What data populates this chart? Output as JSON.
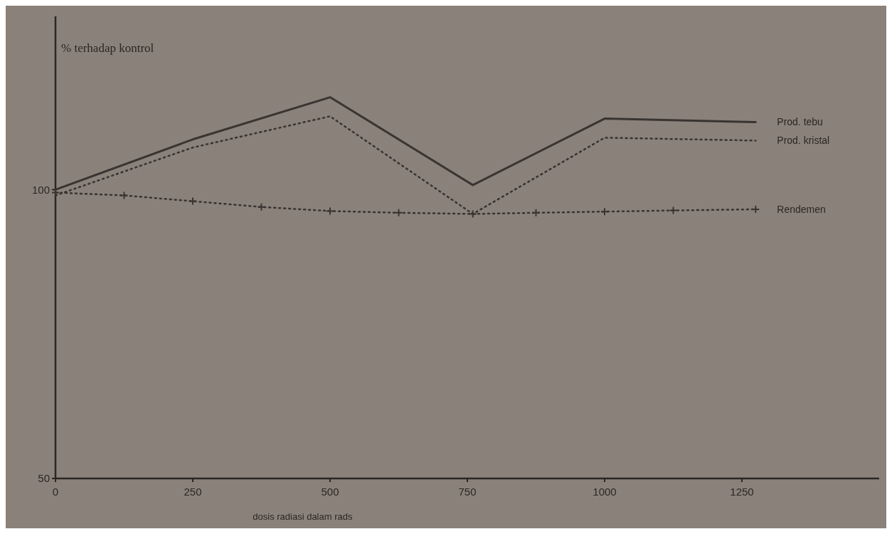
{
  "chart_data": {
    "type": "line",
    "ylabel": "% terhadap kontrol",
    "xlabel": "dosis radiasi dalam rads",
    "xlim": [
      0,
      1500
    ],
    "xticks": [
      0,
      250,
      500,
      750,
      1000,
      1250
    ],
    "ylim": [
      50,
      130
    ],
    "yticks": [
      50,
      100
    ],
    "legend": false,
    "grid": false,
    "series": [
      {
        "name": "Prod. tebu",
        "color": "#3a3431",
        "line_style": "solid",
        "marker": "none",
        "x": [
          0,
          250,
          500,
          760,
          1000,
          1275
        ],
        "values": [
          100,
          108.7,
          116,
          100.8,
          112.3,
          111.7
        ]
      },
      {
        "name": "Prod. kristal",
        "color": "#3a3431",
        "line_style": "dotted",
        "marker": "none",
        "x": [
          0,
          250,
          500,
          760,
          1000,
          1275
        ],
        "values": [
          99,
          107.3,
          112.7,
          95.8,
          109,
          108.5
        ]
      },
      {
        "name": "Rendemen",
        "color": "#3a3431",
        "line_style": "dotted",
        "marker": "cross",
        "x": [
          0,
          125,
          250,
          375,
          500,
          625,
          760,
          875,
          1000,
          1125,
          1275
        ],
        "values": [
          99.5,
          99,
          98,
          97,
          96.3,
          96,
          95.8,
          96,
          96.2,
          96.4,
          96.6
        ]
      }
    ]
  }
}
